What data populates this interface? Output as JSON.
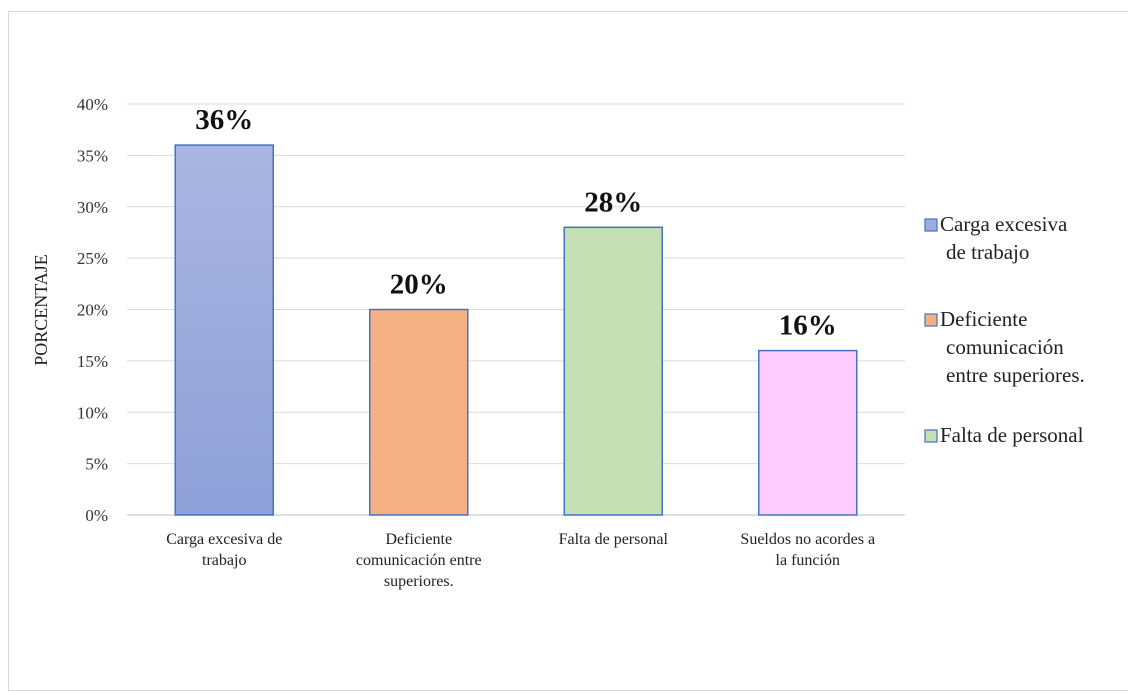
{
  "chart_data": {
    "type": "bar",
    "ylabel": "PORCENTAJE",
    "xlabel": "",
    "ylim": [
      0,
      40
    ],
    "y_ticks": [
      0,
      5,
      10,
      15,
      20,
      25,
      30,
      35,
      40
    ],
    "y_tick_labels": [
      "0%",
      "5%",
      "10%",
      "15%",
      "20%",
      "25%",
      "30%",
      "35%",
      "40%"
    ],
    "grid": true,
    "legend_position": "right",
    "categories": [
      [
        "Carga excesiva de",
        "trabajo"
      ],
      [
        "Deficiente",
        "comunicación entre",
        "superiores."
      ],
      [
        "Falta de personal"
      ],
      [
        "Sueldos no acordes a",
        "la función"
      ]
    ],
    "values": [
      36,
      20,
      28,
      16
    ],
    "data_labels": [
      "36%",
      "20%",
      "28%",
      "16%"
    ],
    "colors": {
      "bar_fill_top": [
        "#aab6e1",
        "#f4b183",
        "#c5e0b4",
        "#ffccff"
      ],
      "bar_fill_bottom": [
        "#8ea0d8",
        "#f4b183",
        "#c5e0b4",
        "#ffccff"
      ],
      "bar_stroke": "#4472c4",
      "grid": "#d9d9d9",
      "axis": "#bfbfbf"
    },
    "legend": [
      {
        "lines": [
          "Carga excesiva",
          "de trabajo"
        ],
        "color": "#9dabdd"
      },
      {
        "lines": [
          "Deficiente",
          "comunicación",
          "entre superiores."
        ],
        "color": "#f4b183"
      },
      {
        "lines": [
          "Falta de personal"
        ],
        "color": "#c5e0b4"
      }
    ]
  }
}
